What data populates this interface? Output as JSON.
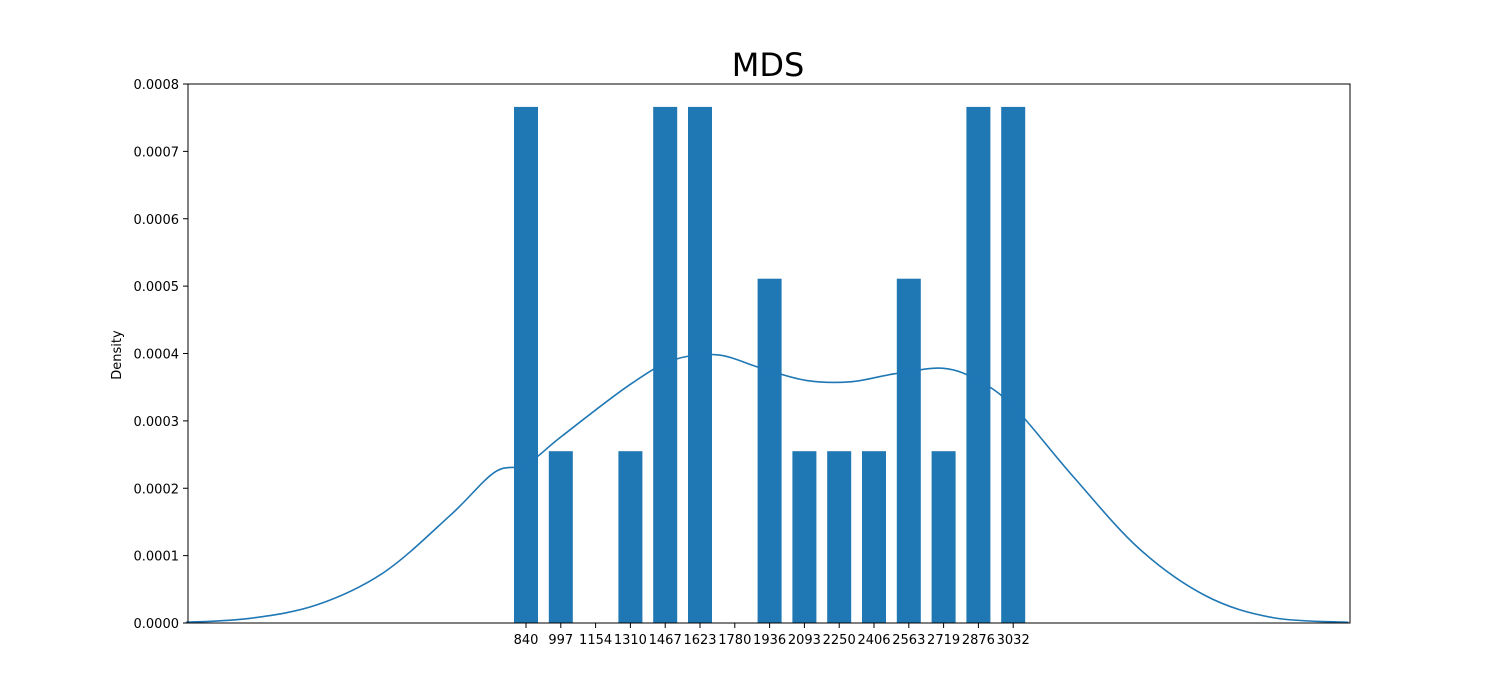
{
  "chart_data": {
    "type": "bar",
    "title": "MDS",
    "xlabel": "",
    "ylabel": "Density",
    "bar_color": "#1f77b4",
    "line_color": "#1f77b4",
    "categories": [
      "840",
      "997",
      "1154",
      "1310",
      "1467",
      "1623",
      "1780",
      "1936",
      "2093",
      "2250",
      "2406",
      "2563",
      "2719",
      "2876",
      "3032"
    ],
    "values": [
      0.000766,
      0.000255,
      0,
      0.000255,
      0.000766,
      0.000766,
      0,
      0.000511,
      0.000255,
      0.000255,
      0.000255,
      0.000511,
      0.000255,
      0.000766,
      0.000766
    ],
    "ylim": [
      0,
      0.0008
    ],
    "yticks": [
      "0.0000",
      "0.0001",
      "0.0002",
      "0.0003",
      "0.0004",
      "0.0005",
      "0.0006",
      "0.0007",
      "0.0008"
    ],
    "density_curve": {
      "x": [
        -690,
        -400,
        -100,
        200,
        500,
        700,
        840,
        1000,
        1300,
        1500,
        1700,
        1900,
        2100,
        2300,
        2500,
        2719,
        2880,
        3040,
        3300,
        3600,
        3900,
        4200,
        4540
      ],
      "y": [
        1e-06,
        7e-06,
        2.7e-05,
        7.5e-05,
        0.00016,
        0.000224,
        0.000235,
        0.000277,
        0.000352,
        0.00039,
        0.000398,
        0.000378,
        0.00036,
        0.000358,
        0.00037,
        0.000378,
        0.000359,
        0.000319,
        0.000218,
        0.00011,
        4e-05,
        8e-06,
        1e-06
      ]
    },
    "xlim": [
      -850,
      4700
    ],
    "grid": false,
    "legend": "none"
  }
}
